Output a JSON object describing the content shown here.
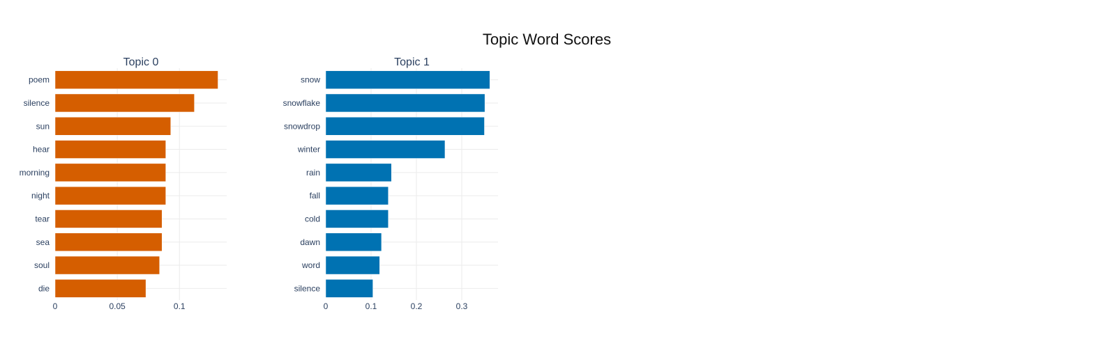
{
  "page": {
    "title": "Topic Word Scores"
  },
  "chart_data": [
    {
      "type": "bar",
      "orientation": "horizontal",
      "title": "Topic 0",
      "color": "#D55E00",
      "categories": [
        "poem",
        "silence",
        "sun",
        "hear",
        "morning",
        "night",
        "tear",
        "sea",
        "soul",
        "die"
      ],
      "values": [
        0.131,
        0.112,
        0.093,
        0.089,
        0.089,
        0.089,
        0.086,
        0.086,
        0.084,
        0.073
      ],
      "xticks": [
        0,
        0.05,
        0.1
      ],
      "xtick_labels": [
        "0",
        "0.05",
        "0.1"
      ],
      "xlim": [
        0,
        0.138
      ],
      "grid": true
    },
    {
      "type": "bar",
      "orientation": "horizontal",
      "title": "Topic 1",
      "color": "#0072B2",
      "categories": [
        "snow",
        "snowflake",
        "snowdrop",
        "winter",
        "rain",
        "fall",
        "cold",
        "dawn",
        "word",
        "silence"
      ],
      "values": [
        0.362,
        0.351,
        0.35,
        0.263,
        0.145,
        0.138,
        0.138,
        0.123,
        0.119,
        0.104
      ],
      "xticks": [
        0,
        0.1,
        0.2,
        0.3
      ],
      "xtick_labels": [
        "0",
        "0.1",
        "0.2",
        "0.3"
      ],
      "xlim": [
        0,
        0.38
      ],
      "grid": true
    }
  ]
}
